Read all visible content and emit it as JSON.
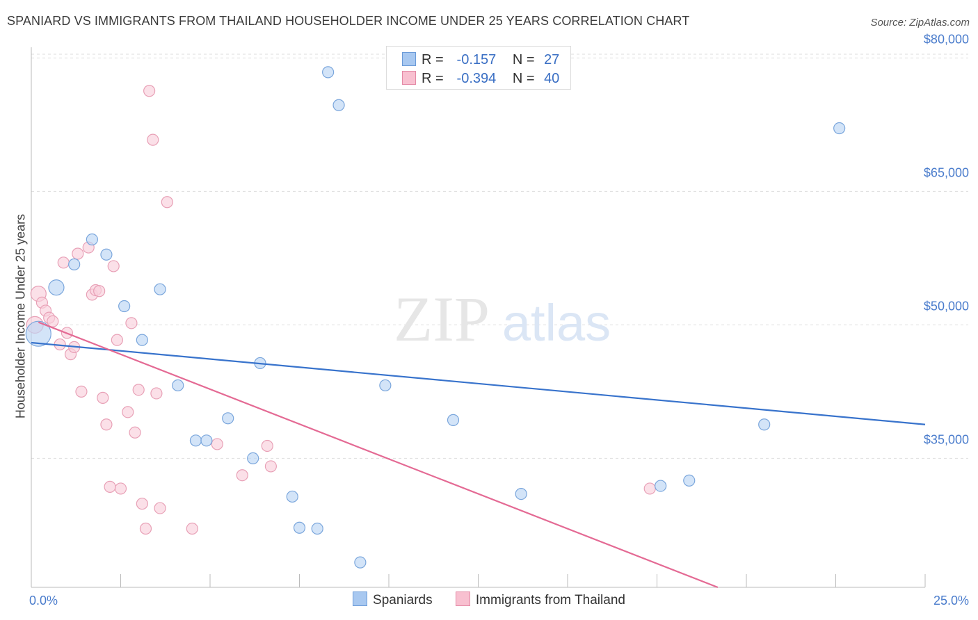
{
  "header": {
    "title": "SPANIARD VS IMMIGRANTS FROM THAILAND HOUSEHOLDER INCOME UNDER 25 YEARS CORRELATION CHART",
    "source": "Source: ZipAtlas.com"
  },
  "watermark": {
    "zip": "ZIP",
    "atlas": "atlas"
  },
  "legend": {
    "rows": [
      {
        "r_label": "R =",
        "r_value": "-0.157",
        "n_label": "N =",
        "n_value": "27",
        "color": "#a8c8f0",
        "border": "#6b9bd8"
      },
      {
        "r_label": "R =",
        "r_value": "-0.394",
        "n_label": "N =",
        "n_value": "40",
        "color": "#f8c0d0",
        "border": "#e48aa6"
      }
    ]
  },
  "colors": {
    "spaniards_fill": "#bcd5f5",
    "spaniards_stroke": "#7aa6dc",
    "spaniards_line": "#3873cc",
    "thailand_fill": "#f9cfdb",
    "thailand_stroke": "#e8a0b6",
    "thailand_line": "#e46a94",
    "grid": "#dddddd",
    "axis_text": "#4a7ccc"
  },
  "chart_data": {
    "type": "scatter",
    "title": "SPANIARD VS IMMIGRANTS FROM THAILAND HOUSEHOLDER INCOME UNDER 25 YEARS CORRELATION CHART",
    "xlabel": "",
    "ylabel": "Householder Income Under 25 years",
    "xlim": [
      0,
      25
    ],
    "ylim": [
      20500,
      83000
    ],
    "x_tick_labels": [
      "0.0%",
      "25.0%"
    ],
    "y_ticks": [
      35000,
      50000,
      65000,
      80000
    ],
    "y_tick_labels": [
      "$35,000",
      "$50,000",
      "$65,000",
      "$80,000"
    ],
    "grid": true,
    "legend_position": "top-center",
    "series": [
      {
        "name": "Spaniards",
        "points": [
          {
            "x": 0.2,
            "y": 49000,
            "s": 18
          },
          {
            "x": 0.7,
            "y": 54200,
            "s": 11
          },
          {
            "x": 1.2,
            "y": 56800,
            "s": 8
          },
          {
            "x": 1.7,
            "y": 59600,
            "s": 8
          },
          {
            "x": 2.1,
            "y": 57900,
            "s": 8
          },
          {
            "x": 2.6,
            "y": 52100,
            "s": 8
          },
          {
            "x": 3.1,
            "y": 48300,
            "s": 8
          },
          {
            "x": 3.6,
            "y": 54000,
            "s": 8
          },
          {
            "x": 4.1,
            "y": 43200,
            "s": 8
          },
          {
            "x": 4.6,
            "y": 37000,
            "s": 8
          },
          {
            "x": 4.9,
            "y": 37000,
            "s": 8
          },
          {
            "x": 5.5,
            "y": 39500,
            "s": 8
          },
          {
            "x": 6.2,
            "y": 35000,
            "s": 8
          },
          {
            "x": 6.4,
            "y": 45700,
            "s": 8
          },
          {
            "x": 7.3,
            "y": 30700,
            "s": 8
          },
          {
            "x": 7.5,
            "y": 27200,
            "s": 8
          },
          {
            "x": 8.0,
            "y": 27100,
            "s": 8
          },
          {
            "x": 8.3,
            "y": 78400,
            "s": 8
          },
          {
            "x": 8.6,
            "y": 74700,
            "s": 8
          },
          {
            "x": 9.2,
            "y": 23300,
            "s": 8
          },
          {
            "x": 9.9,
            "y": 43200,
            "s": 8
          },
          {
            "x": 11.8,
            "y": 39300,
            "s": 8
          },
          {
            "x": 13.7,
            "y": 31000,
            "s": 8
          },
          {
            "x": 17.6,
            "y": 31900,
            "s": 8
          },
          {
            "x": 18.4,
            "y": 32500,
            "s": 8
          },
          {
            "x": 20.5,
            "y": 38800,
            "s": 8
          },
          {
            "x": 22.6,
            "y": 72100,
            "s": 8
          }
        ],
        "trend": {
          "x": [
            0,
            25
          ],
          "y": [
            48000,
            38800
          ]
        }
      },
      {
        "name": "Immigrants from Thailand",
        "points": [
          {
            "x": 0.1,
            "y": 50000,
            "s": 12
          },
          {
            "x": 0.2,
            "y": 53500,
            "s": 11
          },
          {
            "x": 0.3,
            "y": 52500,
            "s": 8
          },
          {
            "x": 0.4,
            "y": 51600,
            "s": 8
          },
          {
            "x": 0.5,
            "y": 50800,
            "s": 8
          },
          {
            "x": 0.6,
            "y": 50400,
            "s": 8
          },
          {
            "x": 0.8,
            "y": 47800,
            "s": 8
          },
          {
            "x": 0.9,
            "y": 57000,
            "s": 8
          },
          {
            "x": 1.0,
            "y": 49100,
            "s": 8
          },
          {
            "x": 1.1,
            "y": 46700,
            "s": 8
          },
          {
            "x": 1.2,
            "y": 47500,
            "s": 8
          },
          {
            "x": 1.3,
            "y": 58000,
            "s": 8
          },
          {
            "x": 1.4,
            "y": 42500,
            "s": 8
          },
          {
            "x": 1.6,
            "y": 58700,
            "s": 8
          },
          {
            "x": 1.7,
            "y": 53400,
            "s": 8
          },
          {
            "x": 1.8,
            "y": 53900,
            "s": 8
          },
          {
            "x": 1.9,
            "y": 53800,
            "s": 8
          },
          {
            "x": 2.0,
            "y": 41800,
            "s": 8
          },
          {
            "x": 2.1,
            "y": 38800,
            "s": 8
          },
          {
            "x": 2.2,
            "y": 31800,
            "s": 8
          },
          {
            "x": 2.3,
            "y": 56600,
            "s": 8
          },
          {
            "x": 2.4,
            "y": 48300,
            "s": 8
          },
          {
            "x": 2.5,
            "y": 31600,
            "s": 8
          },
          {
            "x": 2.7,
            "y": 40200,
            "s": 8
          },
          {
            "x": 2.8,
            "y": 50200,
            "s": 8
          },
          {
            "x": 2.9,
            "y": 37900,
            "s": 8
          },
          {
            "x": 3.0,
            "y": 42700,
            "s": 8
          },
          {
            "x": 3.1,
            "y": 29900,
            "s": 8
          },
          {
            "x": 3.2,
            "y": 27100,
            "s": 8
          },
          {
            "x": 3.3,
            "y": 76300,
            "s": 8
          },
          {
            "x": 3.4,
            "y": 70800,
            "s": 8
          },
          {
            "x": 3.5,
            "y": 42300,
            "s": 8
          },
          {
            "x": 3.6,
            "y": 29400,
            "s": 8
          },
          {
            "x": 3.8,
            "y": 63800,
            "s": 8
          },
          {
            "x": 4.5,
            "y": 27100,
            "s": 8
          },
          {
            "x": 5.2,
            "y": 36600,
            "s": 8
          },
          {
            "x": 5.9,
            "y": 33100,
            "s": 8
          },
          {
            "x": 6.6,
            "y": 36400,
            "s": 8
          },
          {
            "x": 6.7,
            "y": 34100,
            "s": 8
          },
          {
            "x": 17.3,
            "y": 31600,
            "s": 8
          }
        ],
        "trend": {
          "x": [
            0.2,
            19.2
          ],
          "y": [
            50300,
            20500
          ]
        }
      }
    ]
  }
}
